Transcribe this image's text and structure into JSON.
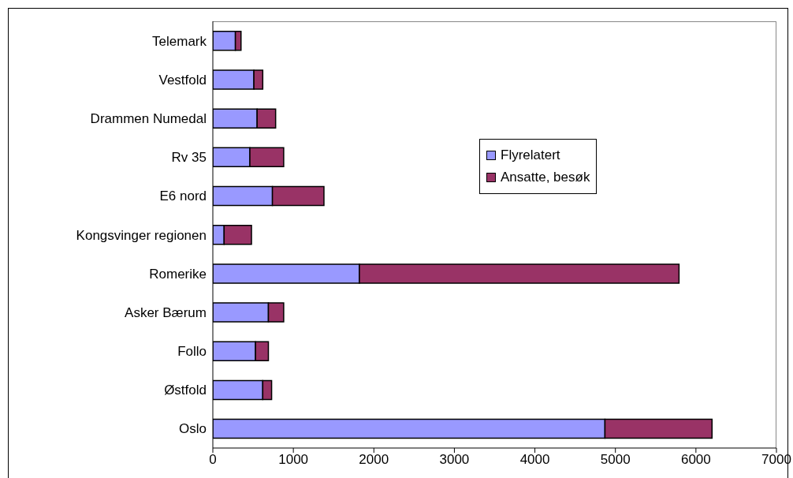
{
  "chart_data": {
    "type": "bar",
    "orientation": "horizontal",
    "stacked": true,
    "categories": [
      "Telemark",
      "Vestfold",
      "Drammen Numedal",
      "Rv 35",
      "E6 nord",
      "Kongsvinger regionen",
      "Romerike",
      "Asker Bærum",
      "Follo",
      "Østfold",
      "Oslo"
    ],
    "series": [
      {
        "name": "Flyrelatert",
        "color": "#9999ff",
        "values": [
          280,
          510,
          550,
          460,
          740,
          140,
          1820,
          690,
          530,
          620,
          4870
        ]
      },
      {
        "name": "Ansatte, besøk",
        "color": "#993366",
        "values": [
          70,
          110,
          230,
          420,
          640,
          340,
          3970,
          190,
          160,
          110,
          1330
        ]
      }
    ],
    "xlim": [
      0,
      7000
    ],
    "xticks": [
      0,
      1000,
      2000,
      3000,
      4000,
      5000,
      6000,
      7000
    ],
    "legend": "right"
  }
}
